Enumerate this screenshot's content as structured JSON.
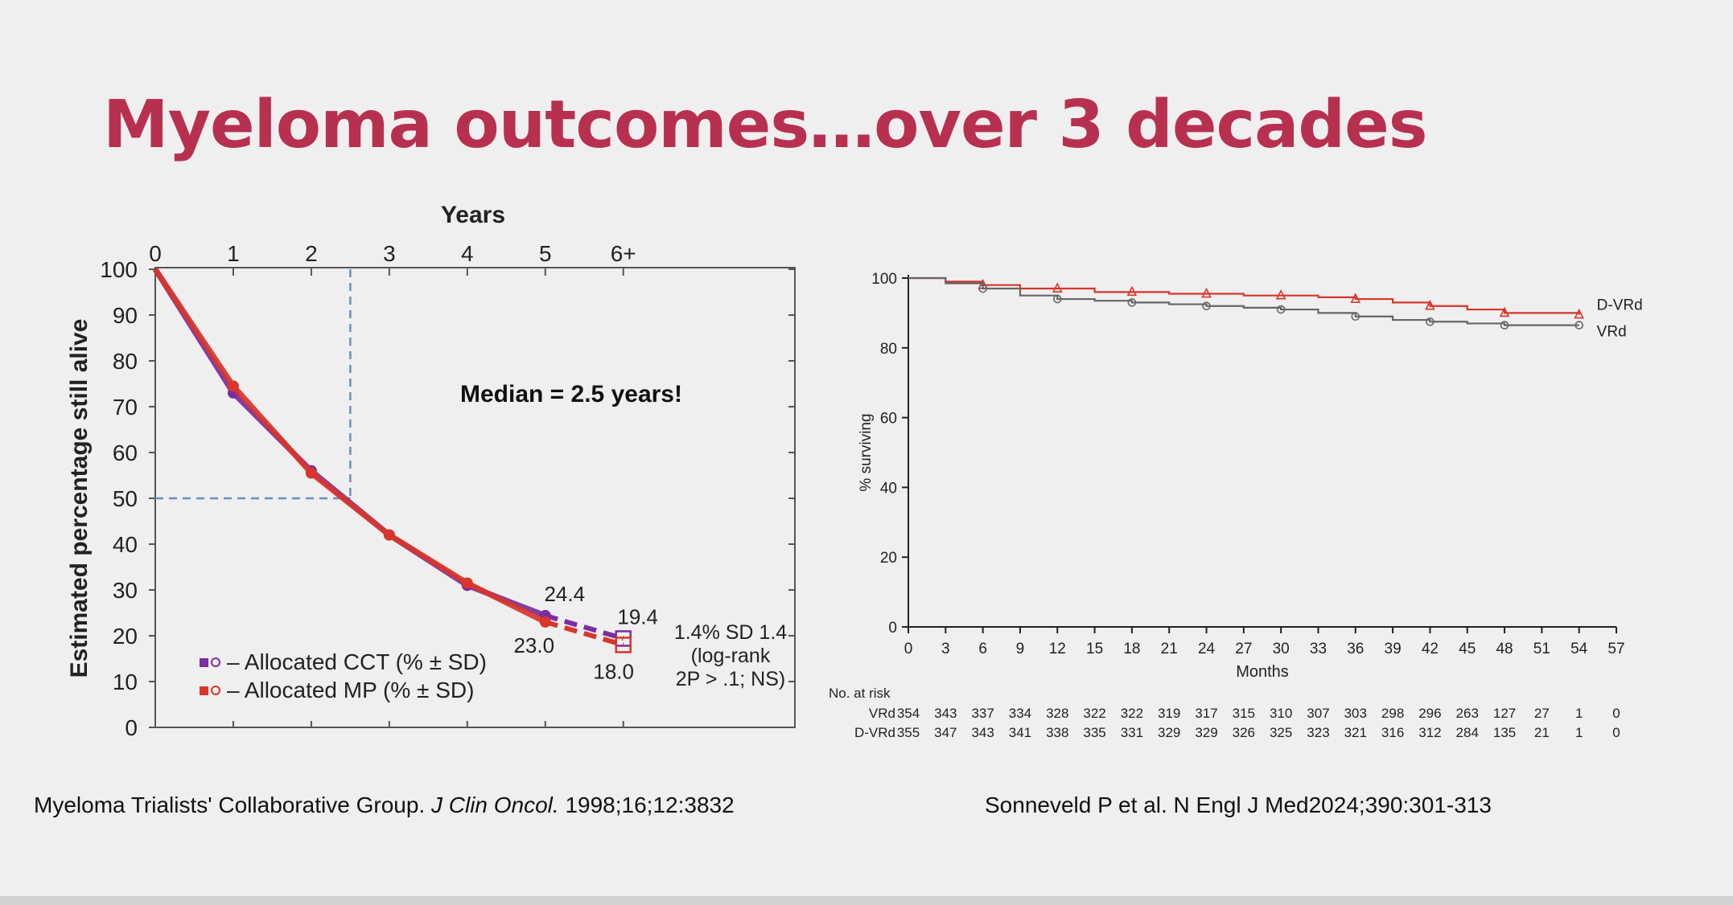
{
  "slide": {
    "title": "Myeloma outcomes…over 3 decades",
    "left_citation": {
      "before": "Myeloma Trialists' Collaborative Group. ",
      "journal": "J Clin Oncol.",
      "after": " 1998;16;12:3832"
    },
    "right_citation": "Sonneveld P et al. N Engl J Med2024;390:301-313"
  },
  "chart_data": [
    {
      "type": "line",
      "title": "Years",
      "ylabel": "Estimated percentage still alive",
      "x_tick_labels": [
        "0",
        "1",
        "2",
        "3",
        "4",
        "5",
        "6+"
      ],
      "y_ticks": [
        0,
        10,
        20,
        30,
        40,
        50,
        60,
        70,
        80,
        90,
        100
      ],
      "xlim": [
        0,
        8.2
      ],
      "ylim": [
        0,
        100
      ],
      "median_annotation": "Median = 2.5 years!",
      "median_x": 2.5,
      "median_y": 50,
      "series": [
        {
          "name": "CCT",
          "label": "– Allocated CCT (% ± SD)",
          "color": "#7a2ea0",
          "x": [
            0,
            1,
            2,
            3,
            4,
            5
          ],
          "y": [
            100,
            73,
            56,
            42,
            31,
            24.4
          ],
          "dashed_x": [
            5,
            6
          ],
          "dashed_y": [
            24.4,
            19.4
          ]
        },
        {
          "name": "MP",
          "label": "– Allocated MP (% ± SD)",
          "color": "#d9352a",
          "x": [
            0,
            1,
            2,
            3,
            4,
            5
          ],
          "y": [
            100,
            74.5,
            55.5,
            42,
            31.5,
            23.0
          ],
          "dashed_x": [
            5,
            6
          ],
          "dashed_y": [
            23.0,
            18.0
          ]
        }
      ],
      "data_labels": [
        "24.4",
        "23.0",
        "19.4",
        "18.0"
      ],
      "stat_annotation": [
        "1.4% SD 1.4",
        "(log-rank",
        "2P > .1; NS)"
      ]
    },
    {
      "type": "line",
      "title": "",
      "xlabel": "Months",
      "ylabel": "% surviving",
      "x_ticks": [
        0,
        3,
        6,
        9,
        12,
        15,
        18,
        21,
        24,
        27,
        30,
        33,
        36,
        39,
        42,
        45,
        48,
        51,
        54,
        57
      ],
      "y_ticks": [
        0,
        20,
        40,
        60,
        80,
        100
      ],
      "xlim": [
        0,
        57
      ],
      "ylim": [
        0,
        100
      ],
      "series": [
        {
          "name": "D-VRd",
          "color": "#d9352a",
          "x": [
            0,
            3,
            6,
            9,
            12,
            15,
            18,
            21,
            24,
            27,
            30,
            33,
            36,
            39,
            42,
            45,
            48,
            51,
            54
          ],
          "y": [
            100,
            99,
            98,
            97,
            97,
            96,
            96,
            95.5,
            95.5,
            95,
            95,
            94.5,
            94,
            93,
            92,
            91,
            90,
            90,
            89.5
          ]
        },
        {
          "name": "VRd",
          "color": "#666666",
          "x": [
            0,
            3,
            6,
            9,
            12,
            15,
            18,
            21,
            24,
            27,
            30,
            33,
            36,
            39,
            42,
            45,
            48,
            51,
            54
          ],
          "y": [
            100,
            98.5,
            97,
            95,
            94,
            93.5,
            93,
            92.5,
            92,
            91.5,
            91,
            90,
            89,
            88,
            87.5,
            87,
            86.5,
            86.5,
            86.5
          ]
        }
      ],
      "risk_table": {
        "heading": "No. at risk",
        "rows": [
          {
            "label": "VRd",
            "values": [
              "354",
              "343",
              "337",
              "334",
              "328",
              "322",
              "322",
              "319",
              "317",
              "315",
              "310",
              "307",
              "303",
              "298",
              "296",
              "263",
              "127",
              "27",
              "1",
              "0"
            ]
          },
          {
            "label": "D-VRd",
            "values": [
              "355",
              "347",
              "343",
              "341",
              "338",
              "335",
              "331",
              "329",
              "329",
              "326",
              "325",
              "323",
              "321",
              "316",
              "312",
              "284",
              "135",
              "21",
              "1",
              "0"
            ]
          }
        ]
      }
    }
  ]
}
